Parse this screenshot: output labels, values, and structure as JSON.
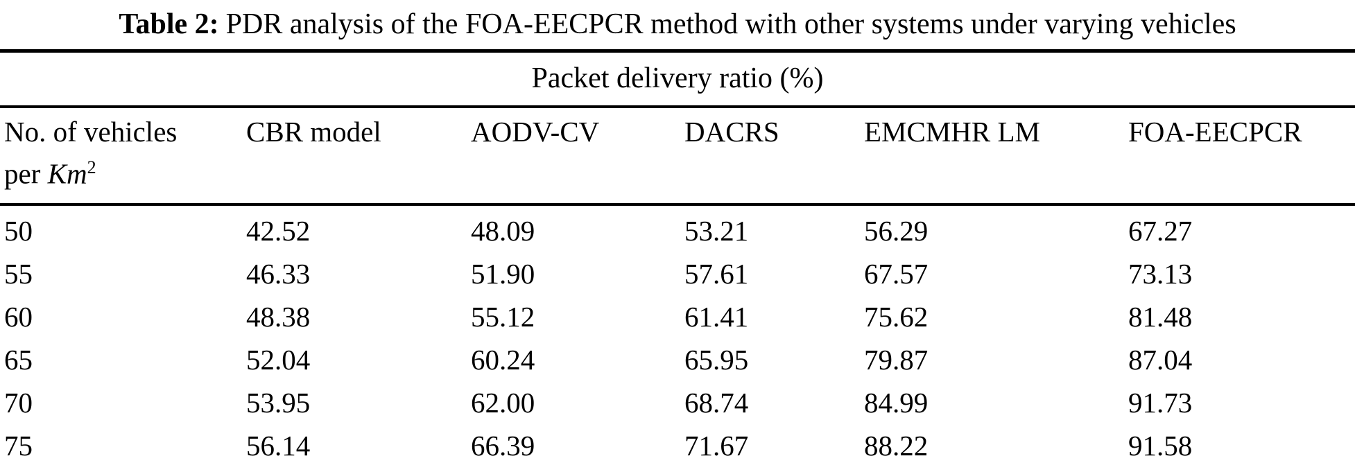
{
  "caption": {
    "label": "Table 2:",
    "text": "PDR analysis of the FOA-EECPCR method with other systems under varying vehicles"
  },
  "table": {
    "span_header": "Packet delivery ratio (%)",
    "row_header": {
      "line1": "No. of vehicles",
      "line2_prefix": "per ",
      "line2_unit": "Km",
      "line2_superscript": "2"
    },
    "method_columns": [
      "CBR model",
      "AODV-CV",
      "DACRS",
      "EMCMHR LM",
      "FOA-EECPCR"
    ],
    "rows": [
      {
        "vehicles": "50",
        "values": [
          "42.52",
          "48.09",
          "53.21",
          "56.29",
          "67.27"
        ]
      },
      {
        "vehicles": "55",
        "values": [
          "46.33",
          "51.90",
          "57.61",
          "67.57",
          "73.13"
        ]
      },
      {
        "vehicles": "60",
        "values": [
          "48.38",
          "55.12",
          "61.41",
          "75.62",
          "81.48"
        ]
      },
      {
        "vehicles": "65",
        "values": [
          "52.04",
          "60.24",
          "65.95",
          "79.87",
          "87.04"
        ]
      },
      {
        "vehicles": "70",
        "values": [
          "53.95",
          "62.00",
          "68.74",
          "84.99",
          "91.73"
        ]
      },
      {
        "vehicles": "75",
        "values": [
          "56.14",
          "66.39",
          "71.67",
          "88.22",
          "91.58"
        ]
      }
    ]
  },
  "colors": {
    "background": "#ffffff",
    "text": "#000000",
    "rule": "#000000"
  }
}
